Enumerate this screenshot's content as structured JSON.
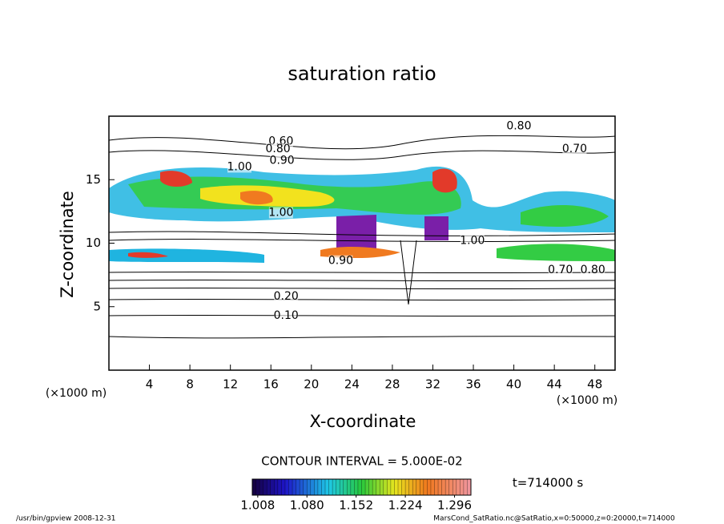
{
  "chart_data": {
    "type": "contour",
    "title": "saturation ratio",
    "x_label": "X-coordinate",
    "y_label": "Z-coordinate",
    "x_unit": "(×1000 m)",
    "y_unit": "(×1000 m)",
    "xlim": [
      0,
      50
    ],
    "ylim": [
      0,
      20
    ],
    "xticks": [
      4,
      8,
      12,
      16,
      20,
      24,
      28,
      32,
      36,
      40,
      44,
      48
    ],
    "yticks": [
      5,
      10,
      15
    ],
    "contour_interval": "CONTOUR INTERVAL = 5.000E-02",
    "time_label": "t=714000 s",
    "clim": [
      1.0,
      1.32
    ],
    "colorbar_ticks": [
      1.008,
      {
        "value": 1.08,
        "label": "1.080"
      },
      1.152,
      1.224,
      1.296
    ],
    "annotations": [
      {
        "text": "0.80",
        "x": 40.5,
        "y": 19.2
      },
      {
        "text": "0.70",
        "x": 46.0,
        "y": 17.4
      },
      {
        "text": "0.60",
        "x": 17.0,
        "y": 18.0
      },
      {
        "text": "0.80",
        "x": 16.7,
        "y": 17.4
      },
      {
        "text": "0.90",
        "x": 17.1,
        "y": 16.5
      },
      {
        "text": "1.00",
        "x": 12.9,
        "y": 16.0
      },
      {
        "text": "1.00",
        "x": 17.0,
        "y": 12.4
      },
      {
        "text": "1.00",
        "x": 35.9,
        "y": 10.2
      },
      {
        "text": "0.90",
        "x": 22.9,
        "y": 8.6
      },
      {
        "text": "0.70",
        "x": 44.6,
        "y": 7.9
      },
      {
        "text": "0.80",
        "x": 47.8,
        "y": 7.9
      },
      {
        "text": "0.20",
        "x": 17.5,
        "y": 5.8
      },
      {
        "text": "0.10",
        "x": 17.5,
        "y": 4.3
      }
    ],
    "footer_left": "/usr/bin/gpview  2008-12-31",
    "footer_right": "MarsCond_SatRatio.nc@SatRatio,x=0:50000,z=0:20000,t=714000"
  }
}
